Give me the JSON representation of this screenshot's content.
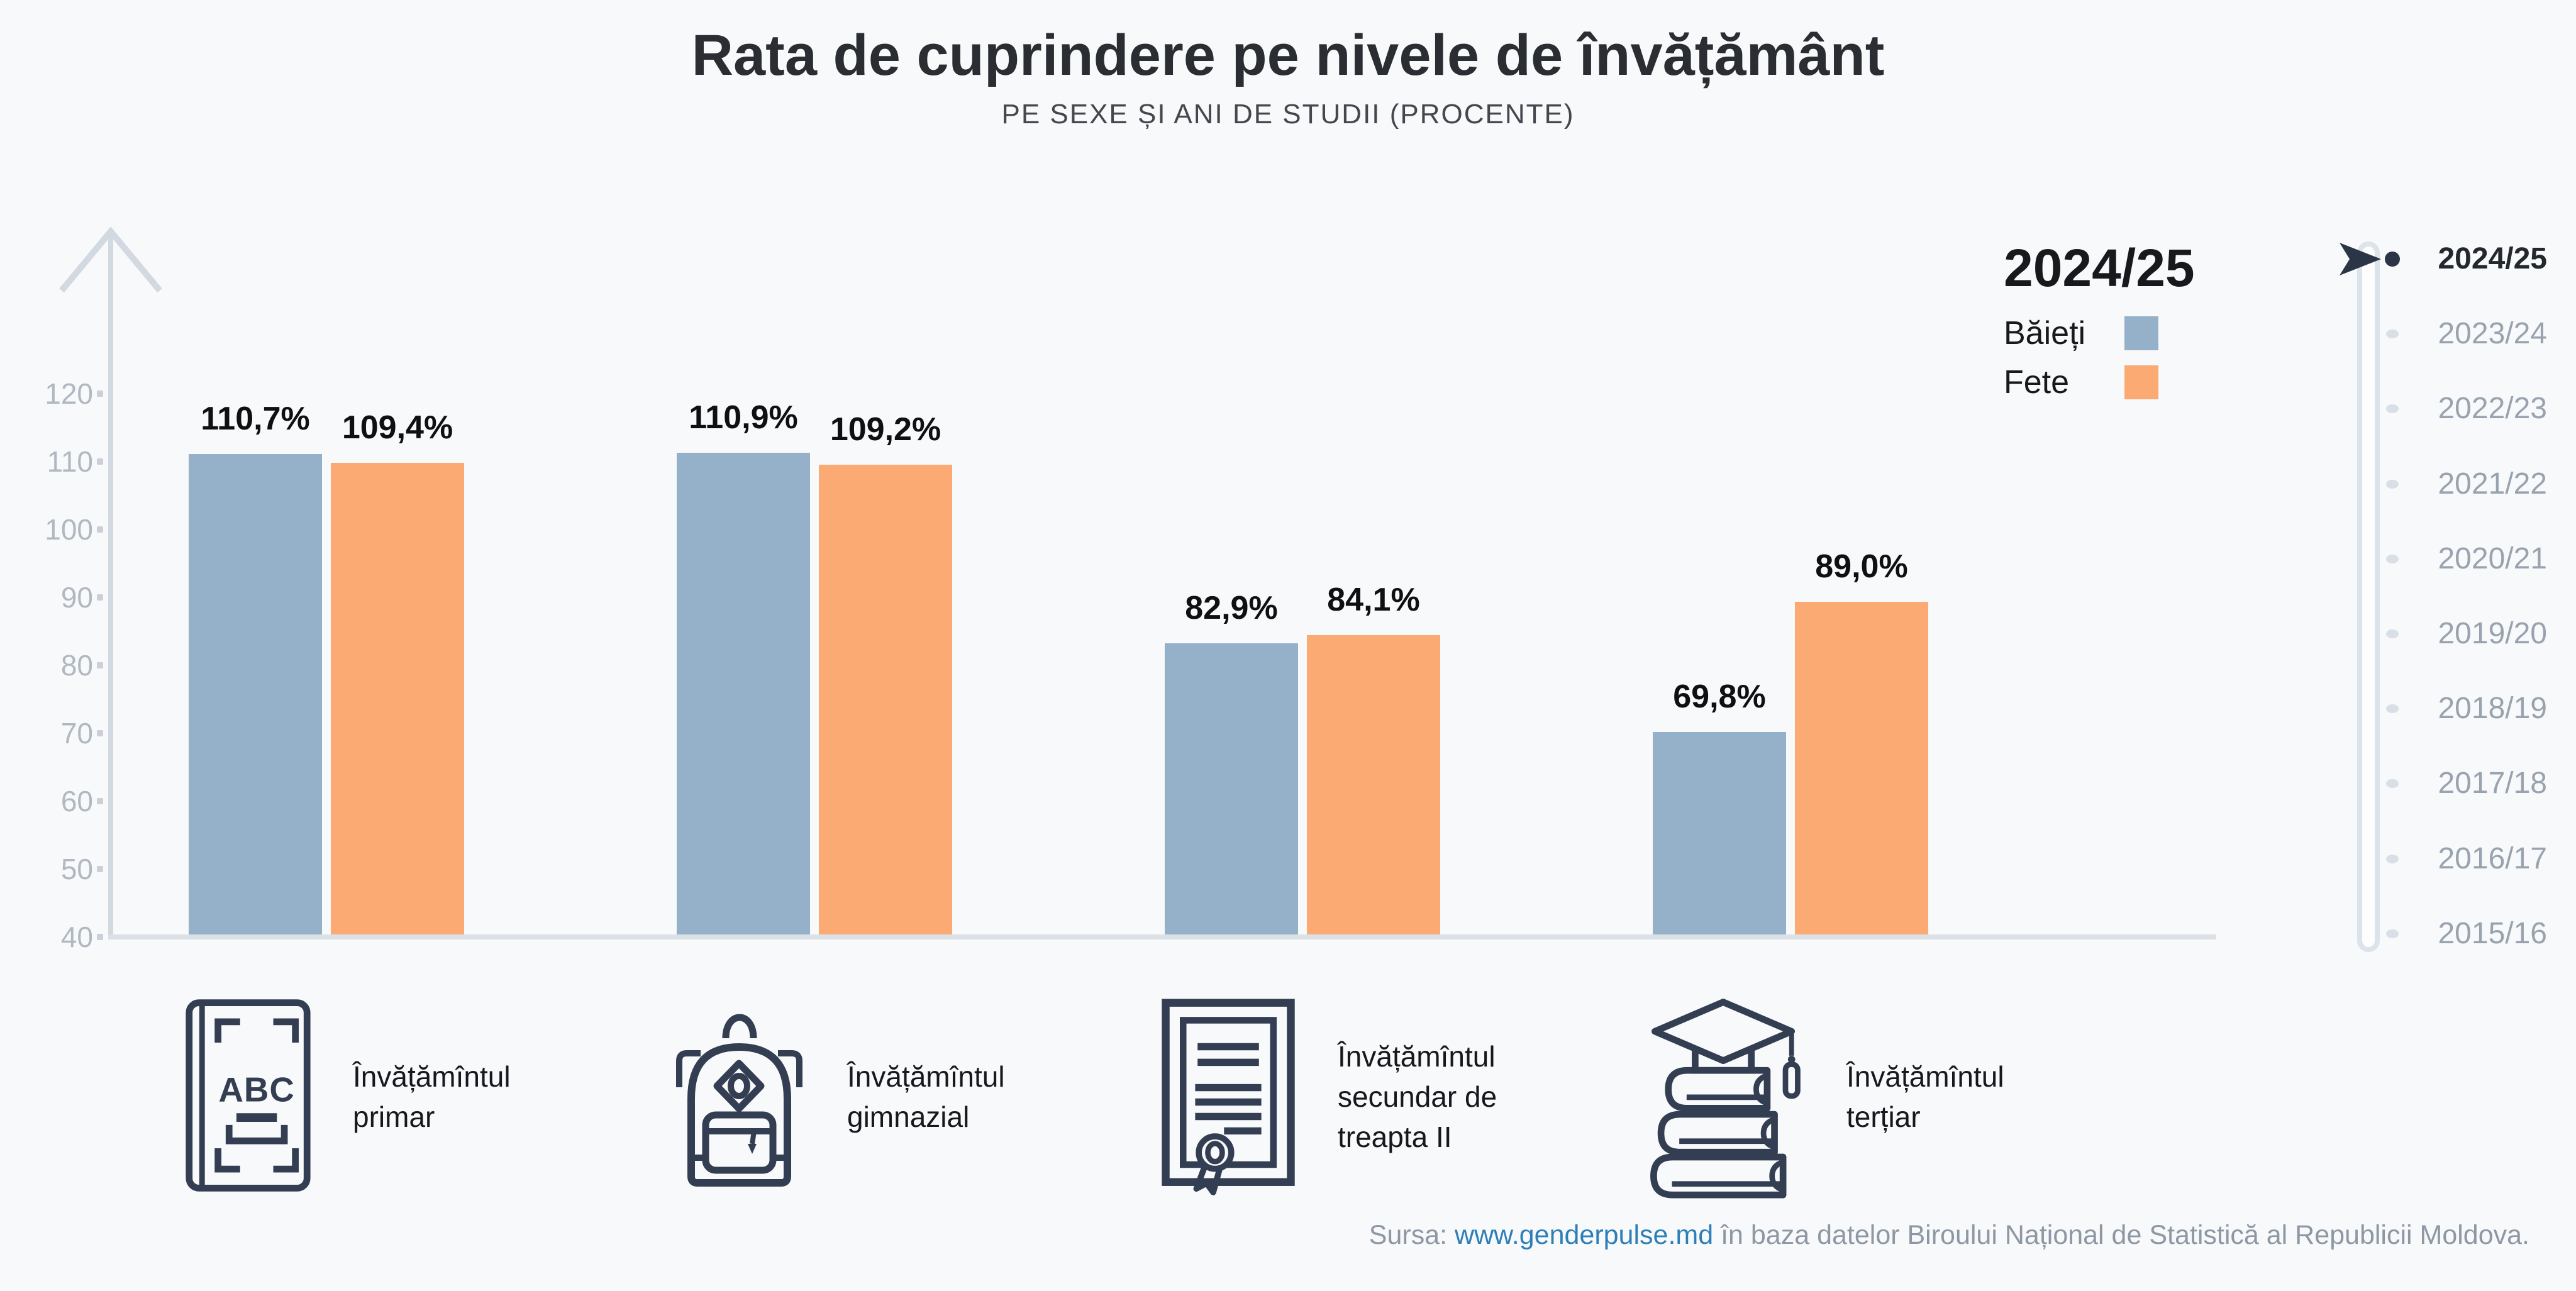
{
  "header": {
    "title": "Rata de cuprindere pe nivele de învățământ",
    "subtitle": "PE SEXE ȘI ANI DE STUDII (PROCENTE)"
  },
  "legend": {
    "year": "2024/25"
  },
  "chart_data": {
    "type": "bar",
    "title": "Rata de cuprindere pe nivele de învățământ",
    "subtitle": "PE SEXE ȘI ANI DE STUDII (PROCENTE)",
    "categories": [
      "Învățămîntul primar",
      "Învățămîntul gimnazial",
      "Învățămîntul secundar de treapta II",
      "Învățămîntul terțiar"
    ],
    "series": [
      {
        "name": "Băieți",
        "color": "#94b1c9",
        "values": [
          110.7,
          110.9,
          82.9,
          69.8
        ],
        "labels": [
          "110,7%",
          "110,9%",
          "82,9%",
          "69,8%"
        ]
      },
      {
        "name": "Fete",
        "color": "#fbaa74",
        "values": [
          109.4,
          109.2,
          84.1,
          89.0
        ],
        "labels": [
          "109,4%",
          "109,2%",
          "84,1%",
          "89,0%"
        ]
      }
    ],
    "y_ticks": [
      120,
      110,
      100,
      90,
      80,
      70,
      60,
      50,
      40
    ],
    "ylim": [
      40,
      128
    ],
    "unit": "%",
    "grid": false,
    "legend_position": "top-right"
  },
  "levels": [
    {
      "icon": "abc-book-icon",
      "label": "Învățămîntul\nprimar"
    },
    {
      "icon": "backpack-icon",
      "label": "Învățămîntul\ngimnazial"
    },
    {
      "icon": "diploma-icon",
      "label": "Învățămîntul\nsecundar de\ntreapta II"
    },
    {
      "icon": "books-graduation-icon",
      "label": "Învățămîntul\nterțiar"
    }
  ],
  "timeline": {
    "years": [
      "2024/25",
      "2023/24",
      "2022/23",
      "2021/22",
      "2020/21",
      "2019/20",
      "2018/19",
      "2017/18",
      "2016/17",
      "2015/16"
    ],
    "active_index": 0
  },
  "source": {
    "prefix": "Sursa: ",
    "link": "www.genderpulse.md",
    "suffix": " în baza datelor Biroului Național de Statistică al Republicii Moldova."
  },
  "colors": {
    "background": "#f8f9fa",
    "boys": "#94b1c9",
    "girls": "#fbaa74",
    "icon_navy": "#333e52",
    "active_year": "#2c3548",
    "axis_gray": "#d3d9e0",
    "link_blue": "#2e7fb8"
  }
}
